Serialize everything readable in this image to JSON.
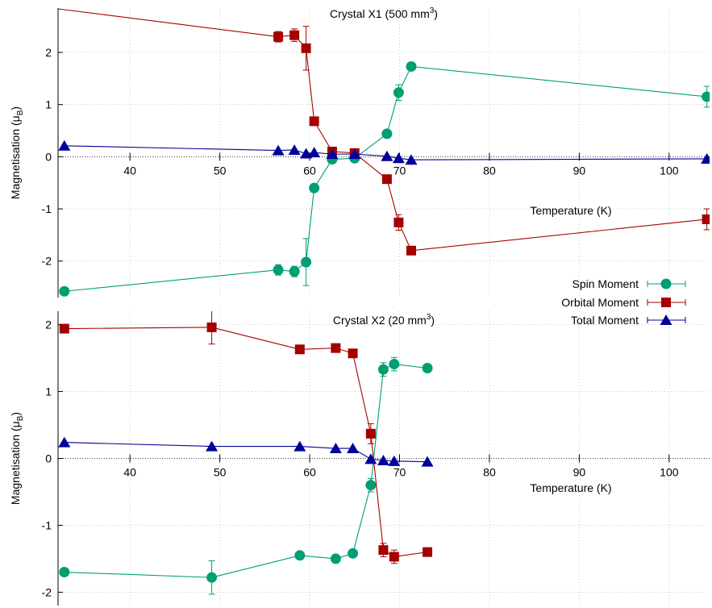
{
  "chart_data": [
    {
      "type": "line",
      "title": "Crystal X1 (500 mm",
      "title_sup": "3",
      "title_close": ")",
      "xlabel": "Temperature (K)",
      "ylabel": "Magnetisation (μ",
      "ylabel_sub": "B",
      "ylabel_close": ")",
      "xlim": [
        32,
        104.5
      ],
      "ylim": [
        -2.7,
        2.85
      ],
      "xticks": [
        40,
        50,
        60,
        70,
        80,
        90,
        100
      ],
      "xtick_labels": [
        "40",
        "50",
        "60",
        "70",
        "80",
        "90",
        "100"
      ],
      "yticks": [
        -2,
        -1,
        0,
        1,
        2
      ],
      "ytick_labels": [
        "-2",
        "-1",
        "0",
        "1",
        "2"
      ],
      "grid": true,
      "series": [
        {
          "name": "Spin Moment",
          "color": "#009e73",
          "marker": "circle",
          "points": [
            {
              "x": 32.7,
              "y": -2.58,
              "err": 0
            },
            {
              "x": 56.5,
              "y": -2.17,
              "err": 0.1
            },
            {
              "x": 58.3,
              "y": -2.2,
              "err": 0.1
            },
            {
              "x": 59.6,
              "y": -2.02,
              "err": 0.45
            },
            {
              "x": 60.5,
              "y": -0.6,
              "err": 0
            },
            {
              "x": 62.5,
              "y": -0.05,
              "err": 0
            },
            {
              "x": 65.0,
              "y": -0.03,
              "err": 0
            },
            {
              "x": 68.6,
              "y": 0.44,
              "err": 0
            },
            {
              "x": 69.9,
              "y": 1.23,
              "err": 0.15
            },
            {
              "x": 71.3,
              "y": 1.73,
              "err": 0
            },
            {
              "x": 104.2,
              "y": 1.15,
              "err": 0.2
            }
          ]
        },
        {
          "name": "Orbital Moment",
          "color": "#a50000",
          "marker": "square",
          "points": [
            {
              "x": 29.0,
              "y": 2.9,
              "err": 0
            },
            {
              "x": 56.5,
              "y": 2.3,
              "err": 0.1
            },
            {
              "x": 58.3,
              "y": 2.33,
              "err": 0.12
            },
            {
              "x": 59.6,
              "y": 2.08,
              "err": 0.42
            },
            {
              "x": 60.5,
              "y": 0.68,
              "err": 0
            },
            {
              "x": 62.5,
              "y": 0.1,
              "err": 0
            },
            {
              "x": 65.0,
              "y": 0.07,
              "err": 0
            },
            {
              "x": 68.6,
              "y": -0.43,
              "err": 0
            },
            {
              "x": 69.9,
              "y": -1.26,
              "err": 0.15
            },
            {
              "x": 71.3,
              "y": -1.8,
              "err": 0
            },
            {
              "x": 104.2,
              "y": -1.2,
              "err": 0.2
            }
          ]
        },
        {
          "name": "Total Moment",
          "color": "#000099",
          "marker": "triangle",
          "points": [
            {
              "x": 32.7,
              "y": 0.21,
              "err": 0
            },
            {
              "x": 56.5,
              "y": 0.12,
              "err": 0
            },
            {
              "x": 58.3,
              "y": 0.13,
              "err": 0
            },
            {
              "x": 59.6,
              "y": 0.06,
              "err": 0
            },
            {
              "x": 60.5,
              "y": 0.08,
              "err": 0
            },
            {
              "x": 62.5,
              "y": 0.05,
              "err": 0
            },
            {
              "x": 65.0,
              "y": 0.05,
              "err": 0
            },
            {
              "x": 68.6,
              "y": 0.01,
              "err": 0
            },
            {
              "x": 69.9,
              "y": -0.03,
              "err": 0
            },
            {
              "x": 71.3,
              "y": -0.06,
              "err": 0
            },
            {
              "x": 104.2,
              "y": -0.04,
              "err": 0
            }
          ]
        }
      ]
    },
    {
      "type": "line",
      "title": "Crystal X2 (20 mm",
      "title_sup": "3",
      "title_close": ")",
      "xlabel": "Temperature (K)",
      "ylabel": "Magnetisation (μ",
      "ylabel_sub": "B",
      "ylabel_close": ")",
      "xlim": [
        32,
        104.5
      ],
      "ylim": [
        -2.2,
        2.2
      ],
      "xticks": [
        40,
        50,
        60,
        70,
        80,
        90,
        100
      ],
      "xtick_labels": [
        "40",
        "50",
        "60",
        "70",
        "80",
        "90",
        "100"
      ],
      "yticks": [
        -2,
        -1,
        0,
        1,
        2
      ],
      "ytick_labels": [
        "-2",
        "-1",
        "0",
        "1",
        "2"
      ],
      "grid": true,
      "series": [
        {
          "name": "Spin Moment",
          "color": "#009e73",
          "marker": "circle",
          "points": [
            {
              "x": 32.7,
              "y": -1.7,
              "err": 0
            },
            {
              "x": 49.1,
              "y": -1.78,
              "err": 0.25
            },
            {
              "x": 58.9,
              "y": -1.45,
              "err": 0
            },
            {
              "x": 62.9,
              "y": -1.5,
              "err": 0
            },
            {
              "x": 64.8,
              "y": -1.42,
              "err": 0
            },
            {
              "x": 66.8,
              "y": -0.4,
              "err": 0.1
            },
            {
              "x": 68.2,
              "y": 1.33,
              "err": 0.1
            },
            {
              "x": 69.4,
              "y": 1.41,
              "err": 0.1
            },
            {
              "x": 73.1,
              "y": 1.35,
              "err": 0
            }
          ]
        },
        {
          "name": "Orbital Moment",
          "color": "#a50000",
          "marker": "square",
          "points": [
            {
              "x": 32.7,
              "y": 1.94,
              "err": 0
            },
            {
              "x": 49.1,
              "y": 1.96,
              "err": 0.25
            },
            {
              "x": 58.9,
              "y": 1.63,
              "err": 0
            },
            {
              "x": 62.9,
              "y": 1.65,
              "err": 0
            },
            {
              "x": 64.8,
              "y": 1.57,
              "err": 0
            },
            {
              "x": 66.8,
              "y": 0.37,
              "err": 0.15
            },
            {
              "x": 68.2,
              "y": -1.37,
              "err": 0.1
            },
            {
              "x": 69.4,
              "y": -1.47,
              "err": 0.1
            },
            {
              "x": 73.1,
              "y": -1.4,
              "err": 0
            }
          ]
        },
        {
          "name": "Total Moment",
          "color": "#000099",
          "marker": "triangle",
          "points": [
            {
              "x": 32.7,
              "y": 0.24,
              "err": 0
            },
            {
              "x": 49.1,
              "y": 0.18,
              "err": 0
            },
            {
              "x": 58.9,
              "y": 0.18,
              "err": 0
            },
            {
              "x": 62.9,
              "y": 0.15,
              "err": 0
            },
            {
              "x": 64.8,
              "y": 0.15,
              "err": 0
            },
            {
              "x": 66.8,
              "y": -0.01,
              "err": 0
            },
            {
              "x": 68.2,
              "y": -0.03,
              "err": 0
            },
            {
              "x": 69.4,
              "y": -0.04,
              "err": 0
            },
            {
              "x": 73.1,
              "y": -0.05,
              "err": 0
            }
          ]
        }
      ]
    }
  ],
  "legend": {
    "placement": "between panels, right",
    "entries": [
      {
        "label": "Spin Moment",
        "color": "#009e73",
        "marker": "circle"
      },
      {
        "label": "Orbital Moment",
        "color": "#a50000",
        "marker": "square"
      },
      {
        "label": "Total Moment",
        "color": "#000099",
        "marker": "triangle"
      }
    ]
  }
}
